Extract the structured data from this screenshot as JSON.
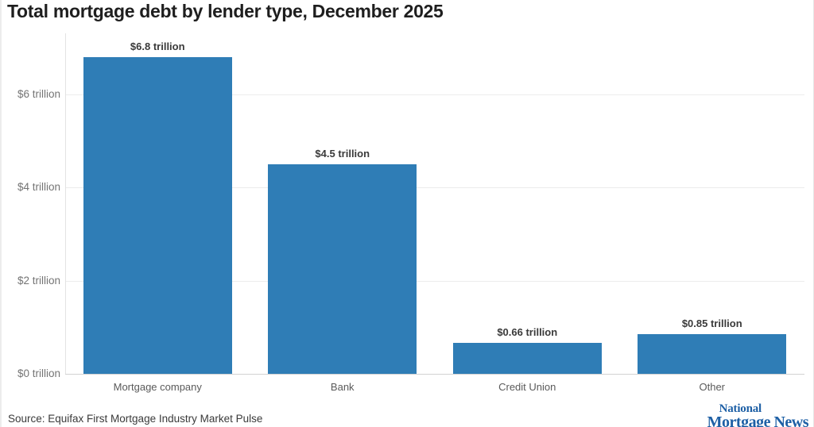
{
  "page": {
    "title": "Total mortgage debt by lender type, December 2025",
    "source": "Source: Equifax First Mortgage Industry Market Pulse",
    "logo": {
      "line1": "National",
      "line2": "Mortgage News",
      "color": "#1d5fa5"
    }
  },
  "colors": {
    "bar": "#2f7db6",
    "gridline": "#ececec",
    "zero_line": "#d2d2d2",
    "axis_line": "#e3e3e3",
    "logo_blue": "#1d5fa5"
  },
  "chart_data": {
    "type": "bar",
    "title": "Total mortgage debt by lender type, December 2025",
    "categories": [
      "Mortgage company",
      "Bank",
      "Credit Union",
      "Other"
    ],
    "values": [
      6.8,
      4.5,
      0.66,
      0.85
    ],
    "value_labels": [
      "$6.8 trillion",
      "$4.5 trillion",
      "$0.66 trillion",
      "$0.85 trillion"
    ],
    "yticks": [
      {
        "value": 0,
        "label": "$0 trillion"
      },
      {
        "value": 2,
        "label": "$2 trillion"
      },
      {
        "value": 4,
        "label": "$4 trillion"
      },
      {
        "value": 6,
        "label": "$6 trillion"
      }
    ],
    "ylim": [
      0,
      7.3
    ],
    "xlabel": "",
    "ylabel": "",
    "grid": true,
    "legend": false,
    "bar_color": "#2f7db6"
  }
}
